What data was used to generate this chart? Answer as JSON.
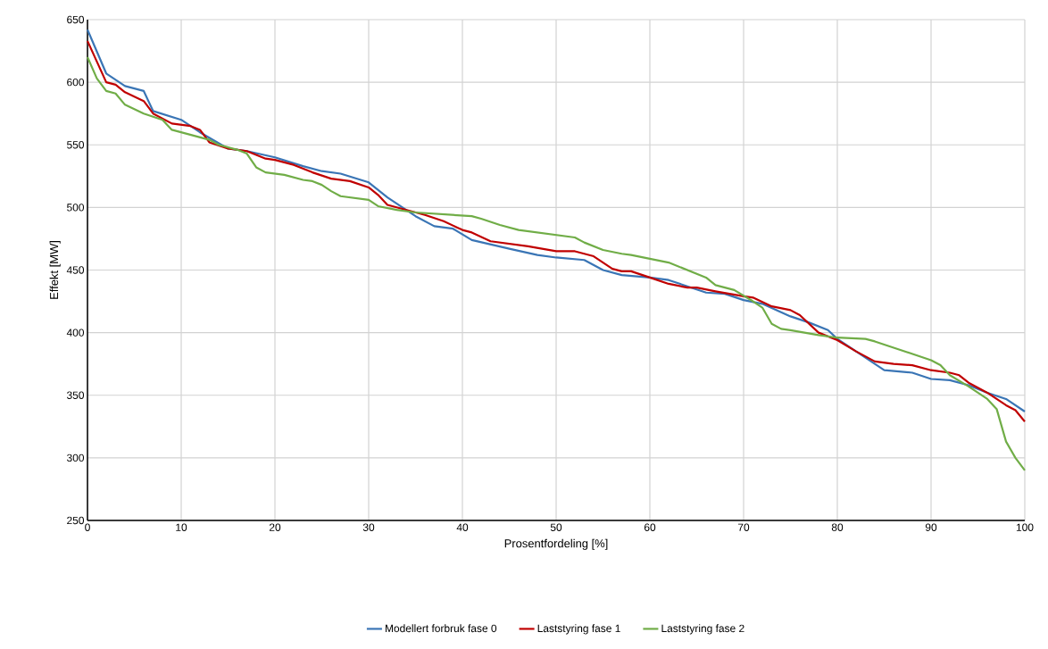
{
  "chart_data": {
    "type": "line",
    "xlabel": "Prosentfordeling [%]",
    "ylabel": "Effekt [MW]",
    "xlim": [
      0,
      100
    ],
    "ylim": [
      250,
      650
    ],
    "xticks": [
      0,
      10,
      20,
      30,
      40,
      50,
      60,
      70,
      80,
      90,
      100
    ],
    "yticks": [
      250,
      300,
      350,
      400,
      450,
      500,
      550,
      600,
      650
    ],
    "grid": true,
    "legend": "bottom",
    "line_style": "solid",
    "marker": "none",
    "series": [
      {
        "name": "Modellert forbruk fase 0",
        "color": "#3a75b5",
        "x": [
          0,
          2,
          4,
          6,
          7,
          10,
          12,
          15,
          17,
          20,
          23,
          25,
          27,
          30,
          32,
          35,
          37,
          39,
          41,
          45,
          48,
          50,
          53,
          55,
          57,
          60,
          62,
          66,
          68,
          70,
          72,
          75,
          77,
          79,
          80,
          83,
          85,
          88,
          90,
          92,
          94,
          96,
          98,
          100
        ],
        "values": [
          642,
          607,
          597,
          593,
          577,
          570,
          560,
          547,
          545,
          540,
          533,
          529,
          527,
          520,
          508,
          493,
          485,
          483,
          474,
          467,
          462,
          460,
          458,
          450,
          446,
          444,
          442,
          432,
          431,
          426,
          423,
          413,
          408,
          402,
          395,
          380,
          370,
          368,
          363,
          362,
          358,
          352,
          347,
          337
        ]
      },
      {
        "name": "Laststyring fase 1",
        "color": "#c00000",
        "x": [
          0,
          2,
          3,
          4,
          6,
          7,
          9,
          11,
          12,
          13,
          15,
          17,
          19,
          20,
          22,
          24,
          26,
          28,
          30,
          31,
          32,
          34,
          36,
          38,
          40,
          41,
          43,
          45,
          47,
          50,
          52,
          54,
          56,
          57,
          58,
          60,
          62,
          64,
          65,
          67,
          70,
          71,
          73,
          75,
          76,
          78,
          80,
          82,
          84,
          86,
          88,
          90,
          92,
          93,
          94,
          96,
          98,
          99,
          100
        ],
        "values": [
          633,
          600,
          598,
          592,
          585,
          575,
          567,
          565,
          562,
          552,
          547,
          545,
          539,
          538,
          534,
          528,
          523,
          521,
          516,
          510,
          502,
          498,
          494,
          489,
          482,
          480,
          473,
          471,
          469,
          465,
          465,
          461,
          451,
          449,
          449,
          444,
          439,
          436,
          436,
          433,
          429,
          428,
          421,
          418,
          414,
          400,
          394,
          385,
          377,
          375,
          374,
          370,
          368,
          366,
          360,
          352,
          342,
          338,
          329
        ]
      },
      {
        "name": "Laststyring fase 2",
        "color": "#70ad47",
        "x": [
          0,
          1,
          2,
          3,
          4,
          6,
          8,
          9,
          11,
          13,
          14,
          16,
          17,
          18,
          19,
          21,
          23,
          24,
          25,
          26,
          27,
          29,
          30,
          31,
          33,
          35,
          37,
          39,
          41,
          42,
          44,
          45,
          46,
          50,
          52,
          53,
          55,
          57,
          58,
          60,
          62,
          64,
          66,
          67,
          69,
          71,
          72,
          73,
          74,
          75,
          78,
          80,
          83,
          84,
          86,
          88,
          90,
          91,
          92,
          94,
          96,
          97,
          98,
          99,
          100
        ],
        "values": [
          620,
          603,
          593,
          591,
          582,
          575,
          570,
          562,
          558,
          554,
          550,
          546,
          543,
          532,
          528,
          526,
          522,
          521,
          518,
          513,
          509,
          507,
          506,
          501,
          498,
          496,
          495,
          494,
          493,
          491,
          486,
          484,
          482,
          478,
          476,
          472,
          466,
          463,
          462,
          459,
          456,
          450,
          444,
          438,
          434,
          425,
          420,
          407,
          403,
          402,
          398,
          396,
          395,
          393,
          388,
          383,
          378,
          374,
          366,
          357,
          347,
          339,
          313,
          300,
          290
        ]
      }
    ]
  }
}
